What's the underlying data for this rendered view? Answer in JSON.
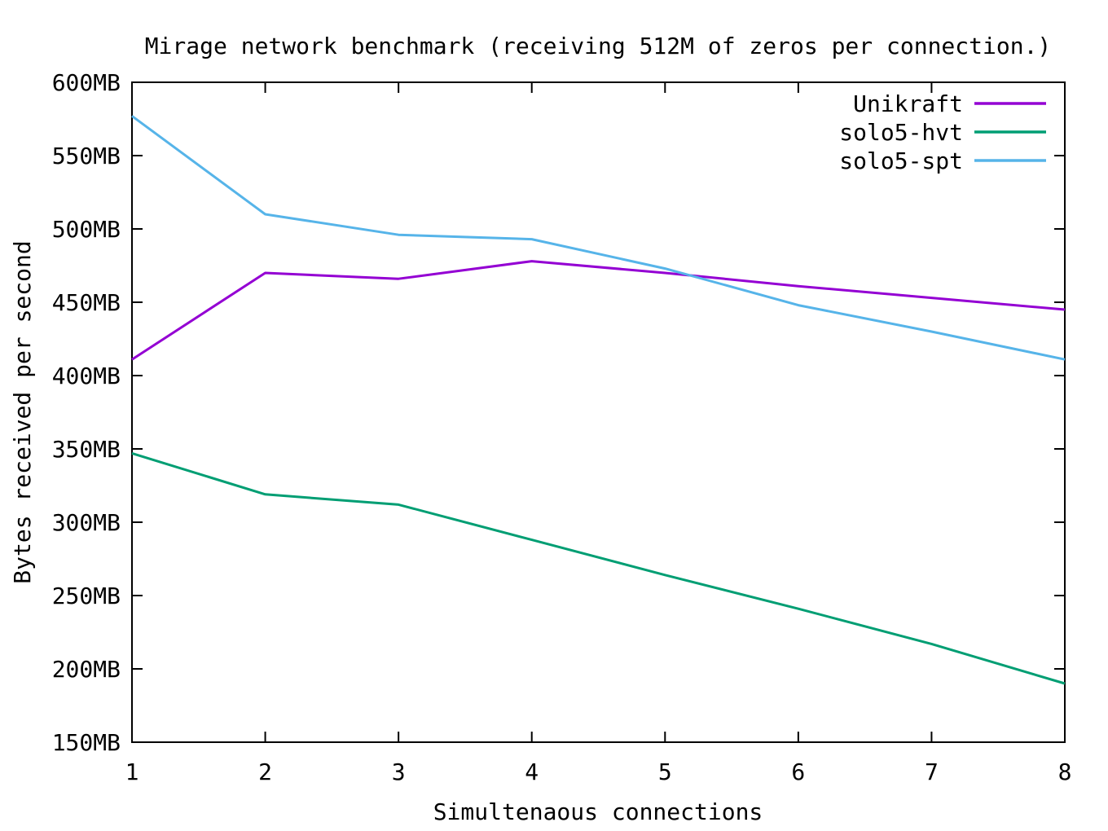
{
  "title": "Mirage network benchmark (receiving 512M of zeros per connection.)",
  "colors": {
    "background": "#ffffff",
    "axis": "#000000",
    "text": "#000000"
  },
  "chart_data": {
    "type": "line",
    "title": "Mirage network benchmark (receiving 512M of zeros per connection.)",
    "xlabel": "Simultenaous connections",
    "ylabel": "Bytes received per second",
    "xlim": [
      1,
      8
    ],
    "ylim": [
      150,
      600
    ],
    "grid": false,
    "legend_position": "top-right-inside",
    "x": [
      1,
      2,
      3,
      4,
      5,
      6,
      7,
      8
    ],
    "xticks": [
      {
        "value": 1,
        "label": "1"
      },
      {
        "value": 2,
        "label": "2"
      },
      {
        "value": 3,
        "label": "3"
      },
      {
        "value": 4,
        "label": "4"
      },
      {
        "value": 5,
        "label": "5"
      },
      {
        "value": 6,
        "label": "6"
      },
      {
        "value": 7,
        "label": "7"
      },
      {
        "value": 8,
        "label": "8"
      }
    ],
    "yticks": [
      {
        "value": 150,
        "label": "150MB"
      },
      {
        "value": 200,
        "label": "200MB"
      },
      {
        "value": 250,
        "label": "250MB"
      },
      {
        "value": 300,
        "label": "300MB"
      },
      {
        "value": 350,
        "label": "350MB"
      },
      {
        "value": 400,
        "label": "400MB"
      },
      {
        "value": 450,
        "label": "450MB"
      },
      {
        "value": 500,
        "label": "500MB"
      },
      {
        "value": 550,
        "label": "550MB"
      },
      {
        "value": 600,
        "label": "600MB"
      }
    ],
    "series": [
      {
        "name": "Unikraft",
        "color": "#9400d3",
        "values": [
          411,
          470,
          466,
          478,
          470,
          461,
          453,
          445
        ]
      },
      {
        "name": "solo5-hvt",
        "color": "#009e73",
        "values": [
          347,
          319,
          312,
          288,
          264,
          241,
          217,
          190
        ]
      },
      {
        "name": "solo5-spt",
        "color": "#56b4e9",
        "values": [
          577,
          510,
          496,
          493,
          473,
          448,
          430,
          411
        ]
      }
    ]
  }
}
